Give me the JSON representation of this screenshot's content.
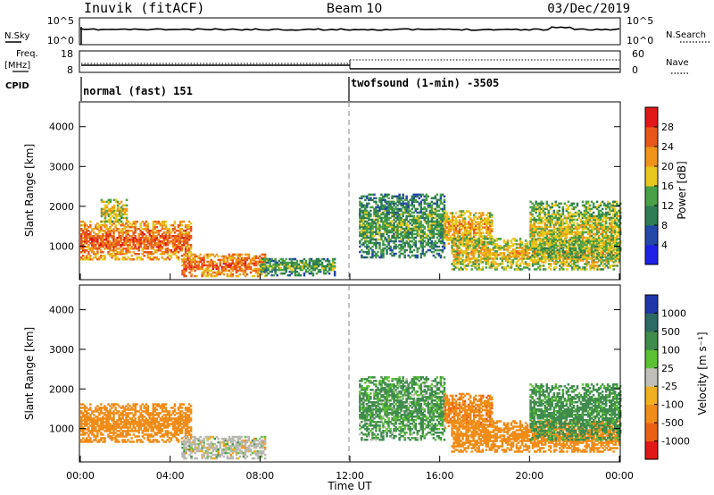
{
  "header": {
    "station": "Inuvik (fitACF)",
    "beam": "Beam 10",
    "date": "03/Dec/2019"
  },
  "panels": {
    "nsky": {
      "label": "N.Sky",
      "tick_top": "10^5",
      "tick_bottom": "10^0",
      "right_label": "N.Search",
      "right_tick_top": "10^5",
      "right_tick_bottom": "10^0"
    },
    "freq": {
      "label_line1": "Freq.",
      "label_line2": "[MHz]",
      "tick_top": "18",
      "tick_bottom": "8",
      "right_label": "Nave",
      "right_tick_top": "60",
      "right_tick_bottom": "0"
    },
    "cpid": {
      "label": "CPID",
      "mode1": "normal (fast) 151",
      "mode2": "twofsound (1-min) -3505"
    }
  },
  "colorbars": {
    "power": {
      "label": "Power [dB]",
      "ticks": [
        "4",
        "8",
        "12",
        "16",
        "20",
        "24",
        "28"
      ],
      "colors": [
        "#1e22e6",
        "#2448a8",
        "#2e7d52",
        "#4aa046",
        "#e8c81c",
        "#f0951a",
        "#e8561a",
        "#e01818"
      ]
    },
    "velocity": {
      "label": "Velocity [m s⁻¹]",
      "ticks": [
        "1000",
        "500",
        "100",
        "25",
        "-25",
        "-100",
        "-500",
        "-1000"
      ],
      "colors": [
        "#1f36a8",
        "#2c6a64",
        "#3f8c4c",
        "#5cc234",
        "#c0c0b8",
        "#f0b020",
        "#f08c18",
        "#ec6014",
        "#e01818"
      ]
    },
    "ground_scatter_color": "#b8b8b0"
  },
  "chart_data": [
    {
      "type": "heatmap",
      "name": "power",
      "xlabel": "",
      "ylabel": "Slant Range [km]",
      "x_range_hours": [
        0,
        24
      ],
      "ylim": [
        180,
        4600
      ],
      "yticks": [
        1000,
        2000,
        3000,
        4000
      ],
      "colorbar_label": "Power [dB]",
      "colorbar_range": [
        0,
        32
      ],
      "features": [
        {
          "t_start": 0.0,
          "t_end": 4.9,
          "r_low": 650,
          "r_high": 1600,
          "level_db": 26
        },
        {
          "t_start": 0.9,
          "t_end": 2.1,
          "r_low": 1600,
          "r_high": 2150,
          "level_db": 20
        },
        {
          "t_start": 4.5,
          "t_end": 8.2,
          "r_low": 230,
          "r_high": 800,
          "level_db": 26
        },
        {
          "t_start": 8.0,
          "t_end": 11.3,
          "r_low": 250,
          "r_high": 700,
          "level_db": 14
        },
        {
          "t_start": 12.4,
          "t_end": 16.2,
          "r_low": 700,
          "r_high": 2300,
          "level_db": 14
        },
        {
          "t_start": 16.2,
          "t_end": 18.3,
          "r_low": 1000,
          "r_high": 1900,
          "level_db": 22
        },
        {
          "t_start": 16.5,
          "t_end": 24.0,
          "r_low": 400,
          "r_high": 1200,
          "level_db": 20
        },
        {
          "t_start": 20.0,
          "t_end": 24.0,
          "r_low": 700,
          "r_high": 2100,
          "level_db": 18
        }
      ]
    },
    {
      "type": "heatmap",
      "name": "velocity",
      "xlabel": "Time UT",
      "ylabel": "Slant Range [km]",
      "x_range_hours": [
        0,
        24
      ],
      "xticks": [
        "00:00",
        "04:00",
        "08:00",
        "12:00",
        "16:00",
        "20:00",
        "00:00"
      ],
      "ylim": [
        180,
        4600
      ],
      "yticks": [
        1000,
        2000,
        3000,
        4000
      ],
      "colorbar_label": "Velocity [m s⁻¹]",
      "colorbar_ticks": [
        1000,
        500,
        100,
        25,
        -25,
        -100,
        -500,
        -1000
      ],
      "features": [
        {
          "t_start": 0.0,
          "t_end": 4.9,
          "r_low": 650,
          "r_high": 1600,
          "velocity": -300
        },
        {
          "t_start": 4.5,
          "t_end": 8.2,
          "r_low": 230,
          "r_high": 800,
          "velocity": 0
        },
        {
          "t_start": 12.4,
          "t_end": 16.2,
          "r_low": 700,
          "r_high": 2300,
          "velocity": 150
        },
        {
          "t_start": 16.2,
          "t_end": 18.3,
          "r_low": 1000,
          "r_high": 1900,
          "velocity": -400
        },
        {
          "t_start": 16.5,
          "t_end": 24.0,
          "r_low": 400,
          "r_high": 1200,
          "velocity": -350
        },
        {
          "t_start": 20.0,
          "t_end": 24.0,
          "r_low": 700,
          "r_high": 2100,
          "velocity": 200
        }
      ]
    }
  ]
}
